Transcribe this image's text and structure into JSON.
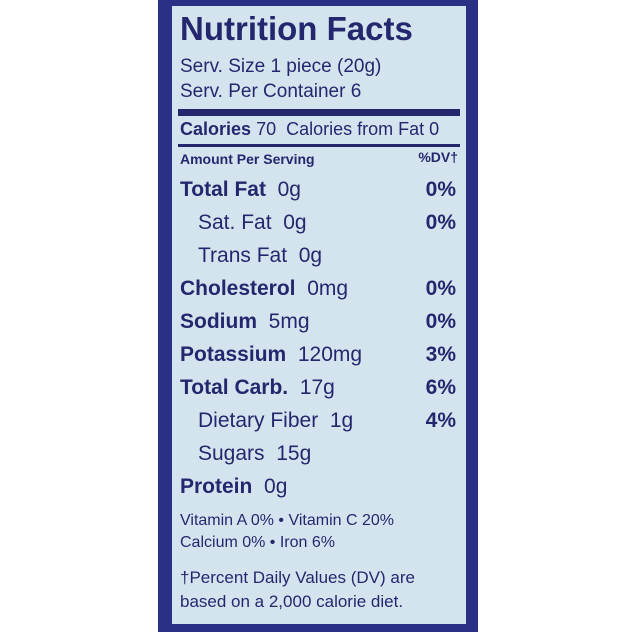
{
  "header": {
    "title": "Nutrition Facts",
    "serving_size": "Serv. Size 1 piece (20g)",
    "servings": "Serv. Per Container 6"
  },
  "calories": {
    "label": "Calories",
    "value": "70",
    "from_fat": "Calories from Fat 0"
  },
  "columns": {
    "amount": "Amount Per Serving",
    "dv": "%DV†"
  },
  "rows": [
    {
      "name": "Total Fat",
      "amount": "0g",
      "dv": "0%",
      "sub": false
    },
    {
      "name": "Sat. Fat",
      "amount": "0g",
      "dv": "0%",
      "sub": true
    },
    {
      "name": "Trans Fat",
      "amount": "0g",
      "sub": true
    },
    {
      "name": "Cholesterol",
      "amount": "0mg",
      "dv": "0%",
      "sub": false
    },
    {
      "name": "Sodium",
      "amount": "5mg",
      "dv": "0%",
      "sub": false
    },
    {
      "name": "Potassium",
      "amount": "120mg",
      "dv": "3%",
      "sub": false
    },
    {
      "name": "Total Carb.",
      "amount": "17g",
      "dv": "6%",
      "sub": false
    },
    {
      "name": "Dietary Fiber",
      "amount": "1g",
      "dv": "4%",
      "sub": true
    },
    {
      "name": "Sugars",
      "amount": "15g",
      "sub": true
    },
    {
      "name": "Protein",
      "amount": "0g",
      "sub": false
    }
  ],
  "vitamins": [
    "Vitamin A 0% • Vitamin C 20%",
    "Calcium 0% • Iron 6%"
  ],
  "footnote": [
    "†Percent Daily Values (DV) are",
    "based on a 2,000 calorie diet."
  ]
}
